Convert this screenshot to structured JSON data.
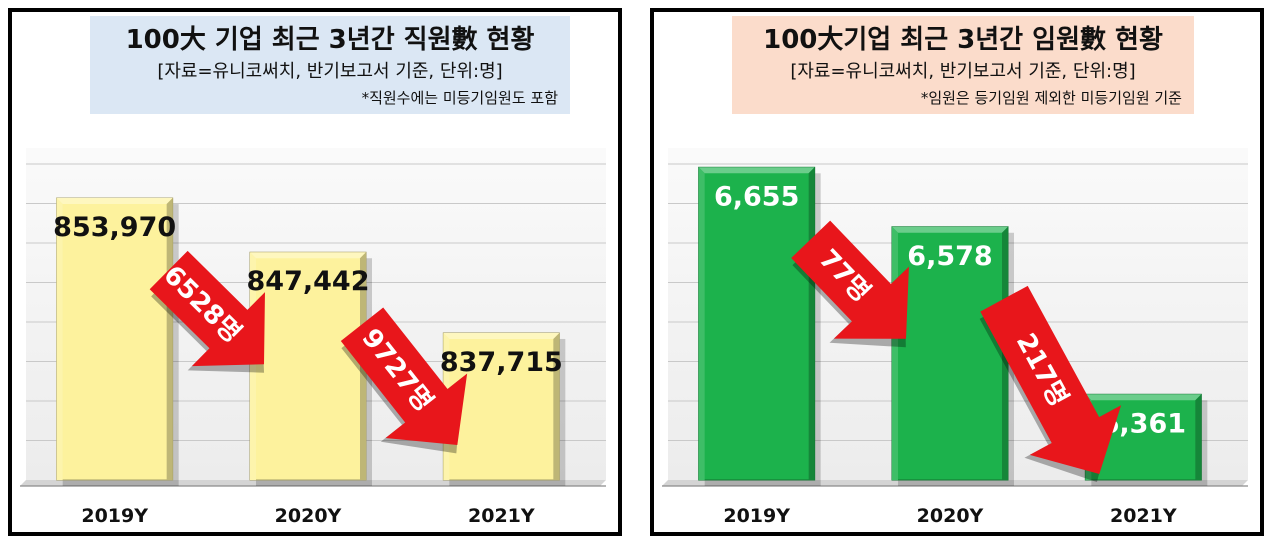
{
  "chart_data": [
    {
      "type": "bar",
      "title": "100大 기업 최근 3년간 직원數 현황",
      "subtitle": "[자료=유니코써치, 반기보고서 기준, 단위:명]",
      "note": "*직원수에는 미등기임원도 포함",
      "categories": [
        "2019Y",
        "2020Y",
        "2021Y"
      ],
      "values": [
        853970,
        847442,
        837715
      ],
      "value_labels": [
        "853,970",
        "847,442",
        "837,715"
      ],
      "annotations": [
        "6528명",
        "9727명"
      ],
      "ylim": [
        820000,
        860000
      ],
      "grid": true,
      "bar_color": "#fdf29d",
      "value_color": "#111111"
    },
    {
      "type": "bar",
      "title": "100大기업 최근 3년간 임원數 현황",
      "subtitle": "[자료=유니코써치, 반기보고서 기준, 단위:명]",
      "note": "*임원은 등기임원 제외한 미등기임원 기준",
      "categories": [
        "2019Y",
        "2020Y",
        "2021Y"
      ],
      "values": [
        6655,
        6578,
        6361
      ],
      "value_labels": [
        "6,655",
        "6,578",
        "6,361"
      ],
      "annotations": [
        "77명",
        "217명"
      ],
      "ylim": [
        6250,
        6680
      ],
      "grid": true,
      "bar_color": "#1cb24c",
      "value_color": "#ffffff"
    }
  ],
  "colors": {
    "arrow": "#e8161b",
    "left_title_bg": "#dbe7f4",
    "right_title_bg": "#fbdccb"
  }
}
